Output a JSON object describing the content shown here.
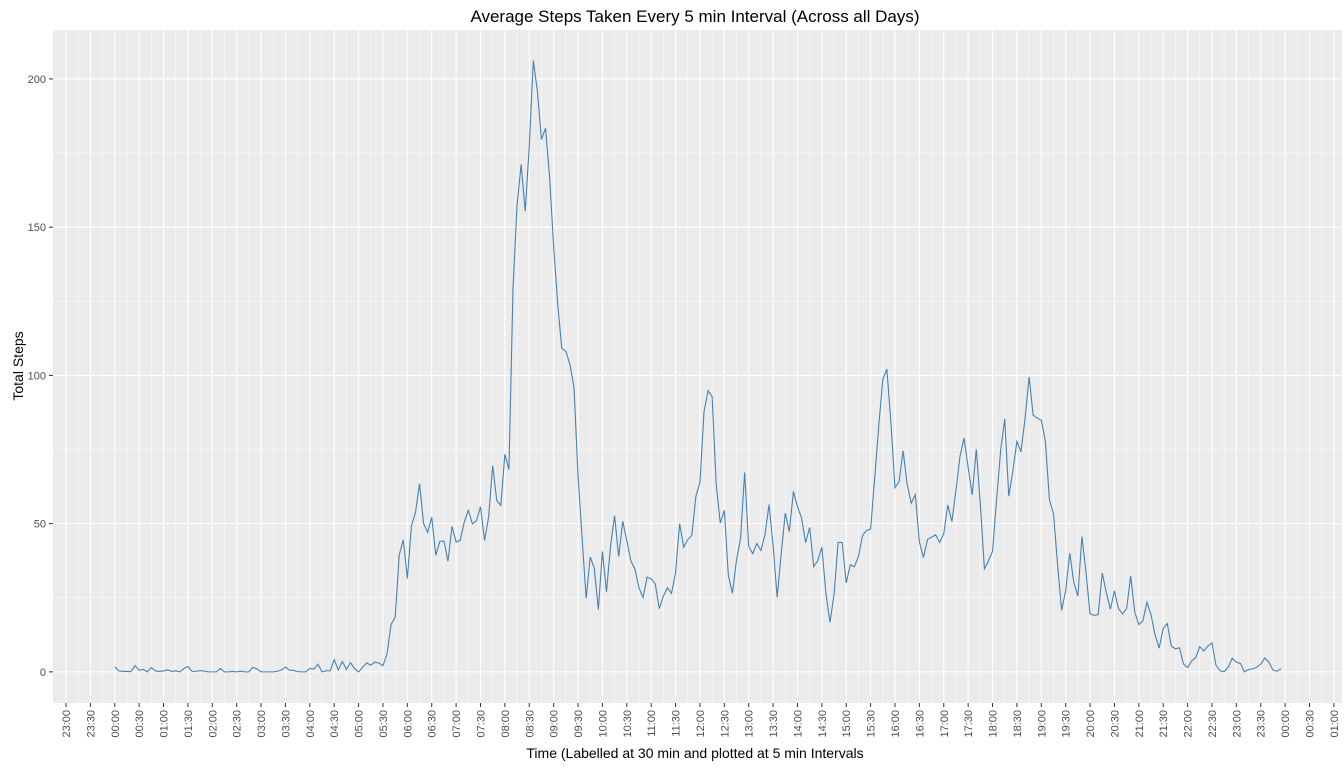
{
  "chart_data": {
    "type": "line",
    "title": "Average Steps Taken Every 5 min Interval (Across all Days)",
    "x_label": "Time (Labelled at 30 min and plotted at 5 min Intervals",
    "y_label": "Total Steps",
    "x": [
      0,
      5,
      10,
      15,
      20,
      25,
      30,
      35,
      40,
      45,
      50,
      55,
      60,
      65,
      70,
      75,
      80,
      85,
      90,
      95,
      100,
      105,
      110,
      115,
      120,
      125,
      130,
      135,
      140,
      145,
      150,
      155,
      160,
      165,
      170,
      175,
      180,
      185,
      190,
      195,
      200,
      205,
      210,
      215,
      220,
      225,
      230,
      235,
      240,
      245,
      250,
      255,
      260,
      265,
      270,
      275,
      280,
      285,
      290,
      295,
      300,
      305,
      310,
      315,
      320,
      325,
      330,
      335,
      340,
      345,
      350,
      355,
      360,
      365,
      370,
      375,
      380,
      385,
      390,
      395,
      400,
      405,
      410,
      415,
      420,
      425,
      430,
      435,
      440,
      445,
      450,
      455,
      460,
      465,
      470,
      475,
      480,
      485,
      490,
      495,
      500,
      505,
      510,
      515,
      520,
      525,
      530,
      535,
      540,
      545,
      550,
      555,
      560,
      565,
      570,
      575,
      580,
      585,
      590,
      595,
      600,
      605,
      610,
      615,
      620,
      625,
      630,
      635,
      640,
      645,
      650,
      655,
      660,
      665,
      670,
      675,
      680,
      685,
      690,
      695,
      700,
      705,
      710,
      715,
      720,
      725,
      730,
      735,
      740,
      745,
      750,
      755,
      760,
      765,
      770,
      775,
      780,
      785,
      790,
      795,
      800,
      805,
      810,
      815,
      820,
      825,
      830,
      835,
      840,
      845,
      850,
      855,
      860,
      865,
      870,
      875,
      880,
      885,
      890,
      895,
      900,
      905,
      910,
      915,
      920,
      925,
      930,
      935,
      940,
      945,
      950,
      955,
      960,
      965,
      970,
      975,
      980,
      985,
      990,
      995,
      1000,
      1005,
      1010,
      1015,
      1020,
      1025,
      1030,
      1035,
      1040,
      1045,
      1050,
      1055,
      1060,
      1065,
      1070,
      1075,
      1080,
      1085,
      1090,
      1095,
      1100,
      1105,
      1110,
      1115,
      1120,
      1125,
      1130,
      1135,
      1140,
      1145,
      1150,
      1155,
      1160,
      1165,
      1170,
      1175,
      1180,
      1185,
      1190,
      1195,
      1200,
      1205,
      1210,
      1215,
      1220,
      1225,
      1230,
      1235,
      1240,
      1245,
      1250,
      1255,
      1260,
      1265,
      1270,
      1275,
      1280,
      1285,
      1290,
      1295,
      1300,
      1305,
      1310,
      1315,
      1320,
      1325,
      1330,
      1335,
      1340,
      1345,
      1350,
      1355,
      1360,
      1365,
      1370,
      1375,
      1380,
      1385,
      1390,
      1395,
      1400,
      1405,
      1410,
      1415,
      1420,
      1425,
      1430,
      1435
    ],
    "series": [
      {
        "name": "Total Steps",
        "color": "#4682b4",
        "values": [
          1.72,
          0.34,
          0.13,
          0.15,
          0.08,
          2.09,
          0.53,
          0.87,
          0,
          1.47,
          0.3,
          0.13,
          0.32,
          0.68,
          0.15,
          0.34,
          0,
          1.11,
          1.83,
          0.17,
          0.17,
          0.38,
          0.26,
          0,
          0,
          0,
          1.13,
          0,
          0,
          0.13,
          0,
          0.23,
          0,
          0,
          1.55,
          0.94,
          0,
          0,
          0,
          0,
          0.21,
          0.62,
          1.62,
          0.58,
          0.49,
          0.08,
          0,
          0,
          1.19,
          0.94,
          2.57,
          0,
          0.34,
          0.36,
          4.11,
          0.66,
          3.49,
          0.83,
          3.11,
          1.11,
          0,
          1.57,
          3,
          2.25,
          3.32,
          2.96,
          2.09,
          6.06,
          16.02,
          18.34,
          39.45,
          44.49,
          31.49,
          49.26,
          53.77,
          63.45,
          49.96,
          47.08,
          52.15,
          39.34,
          44.02,
          44.17,
          37.36,
          49.04,
          43.81,
          44.38,
          50.51,
          54.51,
          49.92,
          50.98,
          55.68,
          44.32,
          52.26,
          69.55,
          57.85,
          56.15,
          73.38,
          68.21,
          129.43,
          157.53,
          171.15,
          155.4,
          177.3,
          206.17,
          195.92,
          179.57,
          183.4,
          167.02,
          143.45,
          124.04,
          109.11,
          108.11,
          103.72,
          95.97,
          66.21,
          45.23,
          24.79,
          38.75,
          34.98,
          21.06,
          40.57,
          26.98,
          42.42,
          52.66,
          38.92,
          50.79,
          44.28,
          37.42,
          34.7,
          28.34,
          25.09,
          31.94,
          31.36,
          29.68,
          21.32,
          25.55,
          28.38,
          26.47,
          33.43,
          49.98,
          42.04,
          44.6,
          46.04,
          59.19,
          63.87,
          87.7,
          94.85,
          92.77,
          63.4,
          50.17,
          54.47,
          32.42,
          26.53,
          37.74,
          45.06,
          67.28,
          42.34,
          39.88,
          43.26,
          40.98,
          46.25,
          56.43,
          42.75,
          25.13,
          39.96,
          53.55,
          47.32,
          60.81,
          55.75,
          51.96,
          43.58,
          48.7,
          35.47,
          37.55,
          42.04,
          26.47,
          16.66,
          26.07,
          43.66,
          43.66,
          30.02,
          36.08,
          35.49,
          38.85,
          45.96,
          47.75,
          48.13,
          65.32,
          82.91,
          98.66,
          102.11,
          83.96,
          62.13,
          64.13,
          74.55,
          63.17,
          56.91,
          59.77,
          43.87,
          38.57,
          44.66,
          45.45,
          46.21,
          43.68,
          46.62,
          56.3,
          50.72,
          61.23,
          72.72,
          78.94,
          68.94,
          59.66,
          75.09,
          56.51,
          34.77,
          37.45,
          40.68,
          58.02,
          74.7,
          85.32,
          59.26,
          67.77,
          77.7,
          74.25,
          85.34,
          99.45,
          86.58,
          85.6,
          84.87,
          77.83,
          58.04,
          53.36,
          36.32,
          20.72,
          27.4,
          40.02,
          30.21,
          25.55,
          45.66,
          33.53,
          19.62,
          19.02,
          19.34,
          33.34,
          26.81,
          21.17,
          27.3,
          21.34,
          19.55,
          21.32,
          32.3,
          20.15,
          15.94,
          17.23,
          23.45,
          19.25,
          12.45,
          8.02,
          14.66,
          16.3,
          8.68,
          7.79,
          8.13,
          2.62,
          1.45,
          3.68,
          4.81,
          8.51,
          7.08,
          8.7,
          9.75,
          2.21,
          0.32,
          0.11,
          1.6,
          4.6,
          3.3,
          2.85,
          0,
          0.83,
          0.96,
          1.58,
          2.6,
          4.7,
          3.3,
          0.64,
          0.23,
          1.08
        ]
      }
    ],
    "xlim": [
      -76,
      1510
    ],
    "ylim": [
      -10.5,
      216.5
    ],
    "xticks": [
      {
        "value": -60,
        "label": "23:00"
      },
      {
        "value": -30,
        "label": "23:30"
      },
      {
        "value": 0,
        "label": "00:00"
      },
      {
        "value": 30,
        "label": "00:30"
      },
      {
        "value": 60,
        "label": "01:00"
      },
      {
        "value": 90,
        "label": "01:30"
      },
      {
        "value": 120,
        "label": "02:00"
      },
      {
        "value": 150,
        "label": "02:30"
      },
      {
        "value": 180,
        "label": "03:00"
      },
      {
        "value": 210,
        "label": "03:30"
      },
      {
        "value": 240,
        "label": "04:00"
      },
      {
        "value": 270,
        "label": "04:30"
      },
      {
        "value": 300,
        "label": "05:00"
      },
      {
        "value": 330,
        "label": "05:30"
      },
      {
        "value": 360,
        "label": "06:00"
      },
      {
        "value": 390,
        "label": "06:30"
      },
      {
        "value": 420,
        "label": "07:00"
      },
      {
        "value": 450,
        "label": "07:30"
      },
      {
        "value": 480,
        "label": "08:00"
      },
      {
        "value": 510,
        "label": "08:30"
      },
      {
        "value": 540,
        "label": "09:00"
      },
      {
        "value": 570,
        "label": "09:30"
      },
      {
        "value": 600,
        "label": "10:00"
      },
      {
        "value": 630,
        "label": "10:30"
      },
      {
        "value": 660,
        "label": "11:00"
      },
      {
        "value": 690,
        "label": "11:30"
      },
      {
        "value": 720,
        "label": "12:00"
      },
      {
        "value": 750,
        "label": "12:30"
      },
      {
        "value": 780,
        "label": "13:00"
      },
      {
        "value": 810,
        "label": "13:30"
      },
      {
        "value": 840,
        "label": "14:00"
      },
      {
        "value": 870,
        "label": "14:30"
      },
      {
        "value": 900,
        "label": "15:00"
      },
      {
        "value": 930,
        "label": "15:30"
      },
      {
        "value": 960,
        "label": "16:00"
      },
      {
        "value": 990,
        "label": "16:30"
      },
      {
        "value": 1020,
        "label": "17:00"
      },
      {
        "value": 1050,
        "label": "17:30"
      },
      {
        "value": 1080,
        "label": "18:00"
      },
      {
        "value": 1110,
        "label": "18:30"
      },
      {
        "value": 1140,
        "label": "19:00"
      },
      {
        "value": 1170,
        "label": "19:30"
      },
      {
        "value": 1200,
        "label": "20:00"
      },
      {
        "value": 1230,
        "label": "20:30"
      },
      {
        "value": 1260,
        "label": "21:00"
      },
      {
        "value": 1290,
        "label": "21:30"
      },
      {
        "value": 1320,
        "label": "22:00"
      },
      {
        "value": 1350,
        "label": "22:30"
      },
      {
        "value": 1380,
        "label": "23:00"
      },
      {
        "value": 1410,
        "label": "23:30"
      },
      {
        "value": 1440,
        "label": "00:00"
      },
      {
        "value": 1470,
        "label": "00:30"
      },
      {
        "value": 1500,
        "label": "01:00"
      }
    ],
    "yticks": [
      0,
      50,
      100,
      150,
      200
    ],
    "grid": true
  }
}
